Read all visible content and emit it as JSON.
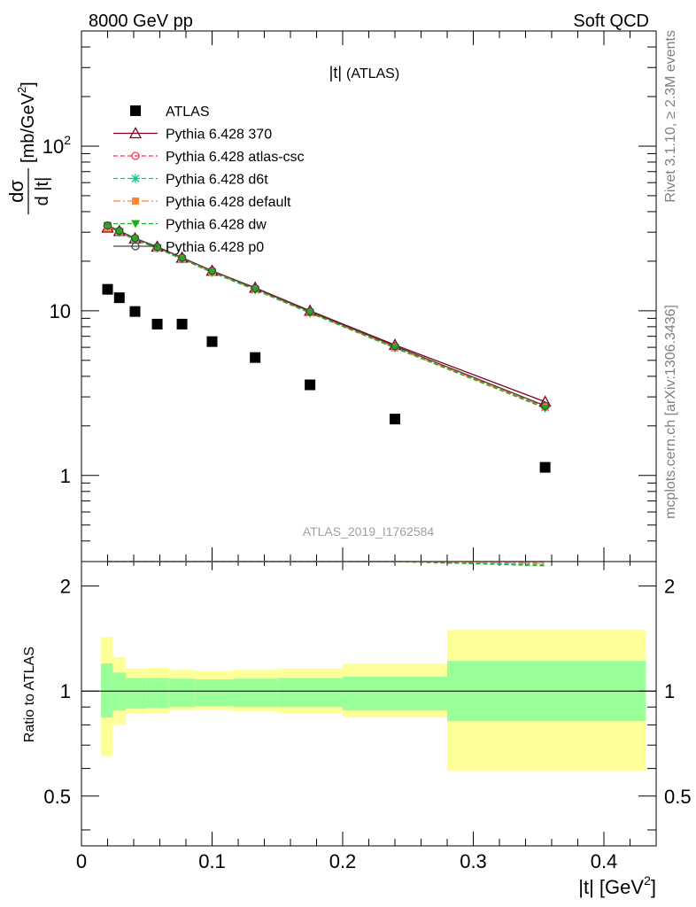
{
  "header": {
    "left": "8000 GeV pp",
    "right": "Soft QCD"
  },
  "plot_title": "|t|",
  "plot_subtitle": "(ATLAS)",
  "analysis_id": "ATLAS_2019_I1762584",
  "side_text_top": "Rivet 3.1.10, ≥ 2.3M events",
  "side_text_bottom": "mcplots.cern.ch [arXiv:1306.3436]",
  "y_label_main": {
    "numerator": "dσ",
    "denominator": "d |t|",
    "unit": "[mb/GeV",
    "unit_sup": "2",
    "unit_close": "]"
  },
  "x_label": {
    "text": "|t|  [GeV",
    "sup": "2",
    "close": "]"
  },
  "y_label_ratio": "Ratio to ATLAS",
  "colors": {
    "data": "#000000",
    "band_inner": "#99ff99",
    "band_outer": "#ffff99",
    "p370": "#800020",
    "atlascsc": "#ff3355",
    "d6t": "#00cc88",
    "default": "#ff8833",
    "dw": "#22aa22",
    "p0": "#444444"
  },
  "chart_data": [
    {
      "type": "scatter",
      "panel": "main",
      "xlim": [
        0,
        0.44
      ],
      "ylim": [
        0.3,
        500
      ],
      "yscale": "log",
      "x_ticks": [
        0,
        0.1,
        0.2,
        0.3,
        0.4
      ],
      "y_ticks": [
        {
          "value": 1,
          "label": "1"
        },
        {
          "value": 10,
          "label": "10"
        },
        {
          "value": 100,
          "label": "10",
          "sup": "2"
        }
      ],
      "legend": "top-left",
      "series": [
        {
          "name": "ATLAS",
          "key": "data",
          "marker": "square",
          "x": [
            0.02,
            0.029,
            0.041,
            0.058,
            0.077,
            0.1,
            0.133,
            0.175,
            0.24,
            0.355
          ],
          "y": [
            13.5,
            12.0,
            9.9,
            8.3,
            8.3,
            6.5,
            5.2,
            3.55,
            2.2,
            1.12
          ]
        },
        {
          "name": "Pythia 6.428 370",
          "key": "p370",
          "marker": "triangle-up-open",
          "dash": "",
          "x": [
            0.02,
            0.029,
            0.041,
            0.058,
            0.077,
            0.1,
            0.133,
            0.175,
            0.24,
            0.355
          ],
          "y": [
            32.0,
            30.5,
            27.5,
            24.5,
            21.0,
            17.5,
            13.8,
            10.0,
            6.2,
            2.8
          ]
        },
        {
          "name": "Pythia 6.428 atlas-csc",
          "key": "atlascsc",
          "marker": "circle-open",
          "dash": "5,3",
          "x": [
            0.02,
            0.029,
            0.041,
            0.058,
            0.077,
            0.1,
            0.133,
            0.175,
            0.24,
            0.355
          ],
          "y": [
            32.5,
            30.3,
            27.3,
            24.2,
            20.8,
            17.3,
            13.6,
            9.8,
            6.0,
            2.62
          ]
        },
        {
          "name": "Pythia 6.428 d6t",
          "key": "d6t",
          "marker": "star",
          "dash": "5,3",
          "x": [
            0.02,
            0.029,
            0.041,
            0.058,
            0.077,
            0.1,
            0.133,
            0.175,
            0.24,
            0.355
          ],
          "y": [
            32.8,
            30.0,
            27.0,
            24.0,
            20.6,
            17.1,
            13.4,
            9.7,
            5.95,
            2.58
          ]
        },
        {
          "name": "Pythia 6.428 default",
          "key": "default",
          "marker": "square-small",
          "dash": "8,3,2,3",
          "x": [
            0.02,
            0.029,
            0.041,
            0.058,
            0.077,
            0.1,
            0.133,
            0.175,
            0.24,
            0.355
          ],
          "y": [
            32.0,
            30.2,
            27.2,
            24.1,
            20.7,
            17.2,
            13.5,
            9.75,
            5.98,
            2.6
          ]
        },
        {
          "name": "Pythia 6.428 dw",
          "key": "dw",
          "marker": "triangle-down",
          "dash": "5,3",
          "x": [
            0.02,
            0.029,
            0.041,
            0.058,
            0.077,
            0.1,
            0.133,
            0.175,
            0.24,
            0.355
          ],
          "y": [
            32.9,
            30.1,
            27.1,
            24.0,
            20.6,
            17.1,
            13.4,
            9.7,
            5.95,
            2.56
          ]
        },
        {
          "name": "Pythia 6.428 p0",
          "key": "p0",
          "marker": "circle-open",
          "dash": "",
          "x": [
            0.02,
            0.029,
            0.041,
            0.058,
            0.077,
            0.1,
            0.133,
            0.175,
            0.24,
            0.355
          ],
          "y": [
            33.0,
            30.6,
            27.6,
            24.4,
            21.0,
            17.5,
            13.7,
            9.9,
            6.1,
            2.65
          ]
        }
      ]
    },
    {
      "type": "area",
      "panel": "ratio",
      "xlim": [
        0,
        0.44
      ],
      "ylim": [
        0.36,
        2.35
      ],
      "yscale": "log",
      "x_ticks": [
        0,
        0.1,
        0.2,
        0.3,
        0.4
      ],
      "y_ticks": [
        {
          "value": 0.5,
          "label": "0.5"
        },
        {
          "value": 1,
          "label": "1"
        },
        {
          "value": 2,
          "label": "2"
        }
      ],
      "reference_line": 1,
      "bins": [
        {
          "x0": 0.015,
          "x1": 0.024,
          "inner": [
            0.84,
            1.2
          ],
          "outer": [
            0.65,
            1.43
          ]
        },
        {
          "x0": 0.024,
          "x1": 0.034,
          "inner": [
            0.88,
            1.13
          ],
          "outer": [
            0.8,
            1.25
          ]
        },
        {
          "x0": 0.034,
          "x1": 0.05,
          "inner": [
            0.89,
            1.09
          ],
          "outer": [
            0.86,
            1.16
          ]
        },
        {
          "x0": 0.05,
          "x1": 0.067,
          "inner": [
            0.895,
            1.09
          ],
          "outer": [
            0.865,
            1.165
          ]
        },
        {
          "x0": 0.067,
          "x1": 0.087,
          "inner": [
            0.9,
            1.085
          ],
          "outer": [
            0.88,
            1.15
          ]
        },
        {
          "x0": 0.087,
          "x1": 0.116,
          "inner": [
            0.905,
            1.08
          ],
          "outer": [
            0.885,
            1.14
          ]
        },
        {
          "x0": 0.116,
          "x1": 0.15,
          "inner": [
            0.9,
            1.085
          ],
          "outer": [
            0.875,
            1.15
          ]
        },
        {
          "x0": 0.15,
          "x1": 0.2,
          "inner": [
            0.9,
            1.09
          ],
          "outer": [
            0.865,
            1.16
          ]
        },
        {
          "x0": 0.2,
          "x1": 0.28,
          "inner": [
            0.88,
            1.1
          ],
          "outer": [
            0.84,
            1.2
          ]
        },
        {
          "x0": 0.28,
          "x1": 0.432,
          "inner": [
            0.82,
            1.22
          ],
          "outer": [
            0.59,
            1.5
          ]
        }
      ]
    }
  ]
}
